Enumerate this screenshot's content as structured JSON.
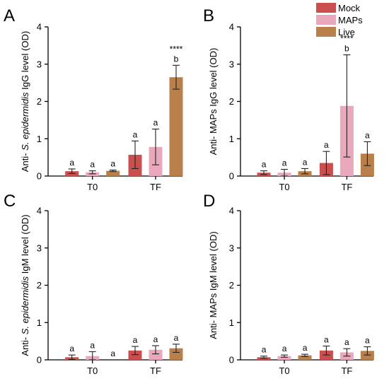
{
  "legend": {
    "placement": "top-right",
    "items": [
      {
        "label": "Mock",
        "color": "#c9504f"
      },
      {
        "label": "MAPs",
        "color": "#e9a8bb"
      },
      {
        "label": "Live",
        "color": "#b9804b"
      }
    ]
  },
  "chart_data": [
    {
      "panel": "A",
      "type": "bar",
      "ylabel": "Anti- S. epidermidis IgG level (OD)",
      "ylabel_prefix": "Anti- ",
      "ylabel_italic": "S. epidermidis",
      "ylabel_suffix": " IgG level (OD)",
      "ylim": [
        0,
        4
      ],
      "yticks": [
        "0",
        "1",
        "2",
        "3",
        "4"
      ],
      "categories": [
        "T0",
        "TF"
      ],
      "series": [
        {
          "name": "Mock",
          "color": "#c9504f",
          "values": [
            0.13,
            0.57
          ],
          "errors": [
            0.06,
            0.37
          ],
          "labels": [
            "a",
            "a"
          ]
        },
        {
          "name": "MAPs",
          "color": "#e9a8bb",
          "values": [
            0.1,
            0.78
          ],
          "errors": [
            0.04,
            0.48
          ],
          "labels": [
            "a",
            "a"
          ]
        },
        {
          "name": "Live",
          "color": "#b9804b",
          "values": [
            0.14,
            2.65
          ],
          "errors": [
            0.02,
            0.32
          ],
          "labels": [
            "a",
            "b"
          ]
        }
      ],
      "significance": [
        {
          "category": "TF",
          "series": "Live",
          "text": "****"
        }
      ]
    },
    {
      "panel": "B",
      "type": "bar",
      "ylabel": "Anti- MAPs IgG level (OD)",
      "ylabel_prefix": "Anti- MAPs IgG level (OD)",
      "ylabel_italic": "",
      "ylabel_suffix": "",
      "ylim": [
        0,
        4
      ],
      "yticks": [
        "0",
        "1",
        "2",
        "3",
        "4"
      ],
      "categories": [
        "T0",
        "TF"
      ],
      "series": [
        {
          "name": "Mock",
          "color": "#c9504f",
          "values": [
            0.09,
            0.35
          ],
          "errors": [
            0.05,
            0.31
          ],
          "labels": [
            "a",
            "a"
          ]
        },
        {
          "name": "MAPs",
          "color": "#e9a8bb",
          "values": [
            0.09,
            1.88
          ],
          "errors": [
            0.09,
            1.37
          ],
          "labels": [
            "a",
            "b"
          ]
        },
        {
          "name": "Live",
          "color": "#b9804b",
          "values": [
            0.13,
            0.6
          ],
          "errors": [
            0.07,
            0.32
          ],
          "labels": [
            "a",
            "a"
          ]
        }
      ],
      "significance": [
        {
          "category": "TF",
          "series": "MAPs",
          "text": "****"
        }
      ]
    },
    {
      "panel": "C",
      "type": "bar",
      "ylabel": "Anti- S. epidermidis IgM level (OD)",
      "ylabel_prefix": "Anti- ",
      "ylabel_italic": "S. epidermidis",
      "ylabel_suffix": " IgM level (OD)",
      "ylim": [
        0,
        4
      ],
      "yticks": [
        "0",
        "1",
        "2",
        "3",
        "4"
      ],
      "categories": [
        "T0",
        "TF"
      ],
      "series": [
        {
          "name": "Mock",
          "color": "#c9504f",
          "values": [
            0.07,
            0.25
          ],
          "errors": [
            0.06,
            0.11
          ],
          "labels": [
            "a",
            "a"
          ]
        },
        {
          "name": "MAPs",
          "color": "#e9a8bb",
          "values": [
            0.1,
            0.27
          ],
          "errors": [
            0.12,
            0.11
          ],
          "labels": [
            "a",
            "a"
          ]
        },
        {
          "name": "Live",
          "color": "#b9804b",
          "values": [
            0.0,
            0.31
          ],
          "errors": [
            0.0,
            0.11
          ],
          "labels": [
            "a",
            "a"
          ]
        }
      ],
      "significance": []
    },
    {
      "panel": "D",
      "type": "bar",
      "ylabel": "Anti- MAPs IgM level (OD)",
      "ylabel_prefix": "Anti- MAPs IgM level (OD)",
      "ylabel_italic": "",
      "ylabel_suffix": "",
      "ylim": [
        0,
        4
      ],
      "yticks": [
        "0",
        "1",
        "2",
        "3",
        "4"
      ],
      "categories": [
        "T0",
        "TF"
      ],
      "series": [
        {
          "name": "Mock",
          "color": "#c9504f",
          "values": [
            0.07,
            0.25
          ],
          "errors": [
            0.03,
            0.12
          ],
          "labels": [
            "a",
            "a"
          ]
        },
        {
          "name": "MAPs",
          "color": "#e9a8bb",
          "values": [
            0.1,
            0.2
          ],
          "errors": [
            0.03,
            0.1
          ],
          "labels": [
            "a",
            "a"
          ]
        },
        {
          "name": "Live",
          "color": "#b9804b",
          "values": [
            0.12,
            0.24
          ],
          "errors": [
            0.03,
            0.11
          ],
          "labels": [
            "a",
            "a"
          ]
        }
      ],
      "significance": []
    }
  ]
}
